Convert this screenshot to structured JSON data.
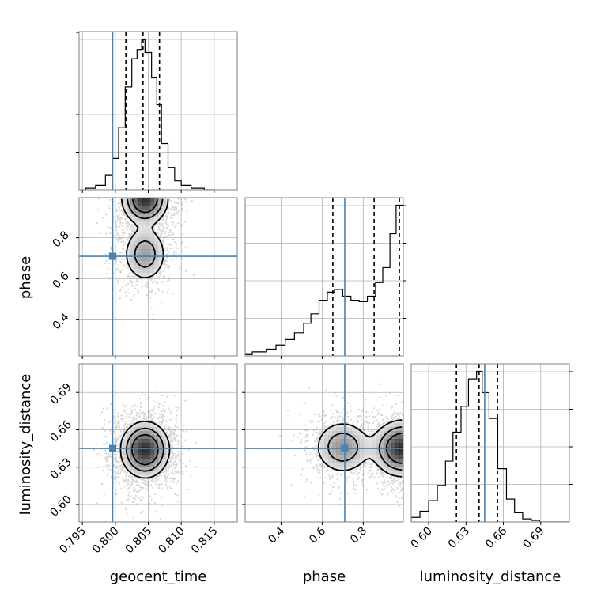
{
  "chart_data": {
    "type": "corner",
    "parameters": [
      "geocent_time",
      "phase",
      "luminosity_distance"
    ],
    "truth_color": "#4682b4",
    "truths": {
      "geocent_time": 0.7996,
      "phase": 0.71,
      "luminosity_distance": 0.645
    },
    "ranges": {
      "geocent_time": [
        0.7945,
        0.8185
      ],
      "phase": [
        0.225,
        0.995
      ],
      "luminosity_distance": [
        0.586,
        0.713
      ]
    },
    "ticks": {
      "geocent_time": {
        "values": [
          0.795,
          0.8,
          0.805,
          0.81,
          0.815
        ],
        "labels": [
          "0.795",
          "0.800",
          "0.805",
          "0.810",
          "0.815"
        ]
      },
      "phase": {
        "values": [
          0.4,
          0.6,
          0.8
        ],
        "labels": [
          "0.4",
          "0.6",
          "0.8"
        ]
      },
      "luminosity_distance": {
        "values": [
          0.6,
          0.63,
          0.66,
          0.69
        ],
        "labels": [
          "0.60",
          "0.63",
          "0.66",
          "0.69"
        ]
      }
    },
    "grid": true,
    "quantiles": {
      "geocent_time": [
        0.8016,
        0.8042,
        0.8067
      ],
      "phase": [
        0.652,
        0.853,
        0.976
      ],
      "luminosity_distance": [
        0.6223,
        0.6405,
        0.6553
      ]
    },
    "histograms": {
      "geocent_time": {
        "bin_edges": [
          0.7955,
          0.797,
          0.7985,
          0.7995,
          0.8005,
          0.8015,
          0.8025,
          0.8033,
          0.804,
          0.8045,
          0.8055,
          0.8063,
          0.807,
          0.808,
          0.809,
          0.81,
          0.8115,
          0.8135,
          0.815
        ],
        "counts": [
          1,
          3,
          10,
          21,
          42,
          69,
          88,
          94,
          101,
          92,
          75,
          57,
          31,
          15,
          6,
          3,
          1,
          0
        ]
      },
      "phase": {
        "bin_edges": [
          0.225,
          0.26,
          0.33,
          0.375,
          0.42,
          0.465,
          0.51,
          0.545,
          0.585,
          0.625,
          0.66,
          0.7,
          0.74,
          0.78,
          0.82,
          0.86,
          0.895,
          0.93,
          0.96,
          0.995
        ],
        "counts": [
          1,
          3,
          5,
          8,
          12,
          17,
          24,
          31,
          41,
          47,
          49,
          44,
          41,
          40,
          44,
          54,
          65,
          90,
          111
        ]
      },
      "luminosity_distance": {
        "bin_edges": [
          0.586,
          0.593,
          0.6,
          0.607,
          0.6135,
          0.6195,
          0.626,
          0.632,
          0.6385,
          0.643,
          0.6485,
          0.6555,
          0.6625,
          0.669,
          0.6755,
          0.6825,
          0.689,
          0.7125
        ],
        "counts": [
          3,
          7,
          14,
          24,
          40,
          59,
          76,
          94,
          99,
          85,
          68,
          35,
          15,
          6,
          2,
          1,
          0
        ]
      }
    },
    "density_2d": {
      "phase_vs_geocent_time": {
        "peaks": [
          {
            "x": 0.8045,
            "y": 0.99,
            "weight": 1.0,
            "sx": 0.0017,
            "sy": 0.06
          },
          {
            "x": 0.8045,
            "y": 0.72,
            "weight": 0.45,
            "sx": 0.0017,
            "sy": 0.07
          }
        ]
      },
      "luminosity_distance_vs_geocent_time": {
        "peaks": [
          {
            "x": 0.8045,
            "y": 0.644,
            "weight": 1.0,
            "sx": 0.0018,
            "sy": 0.011
          }
        ]
      },
      "luminosity_distance_vs_phase": {
        "peaks": [
          {
            "x": 0.99,
            "y": 0.645,
            "weight": 1.0,
            "sx": 0.07,
            "sy": 0.011
          },
          {
            "x": 0.7,
            "y": 0.646,
            "weight": 0.5,
            "sx": 0.07,
            "sy": 0.011
          }
        ]
      }
    }
  }
}
